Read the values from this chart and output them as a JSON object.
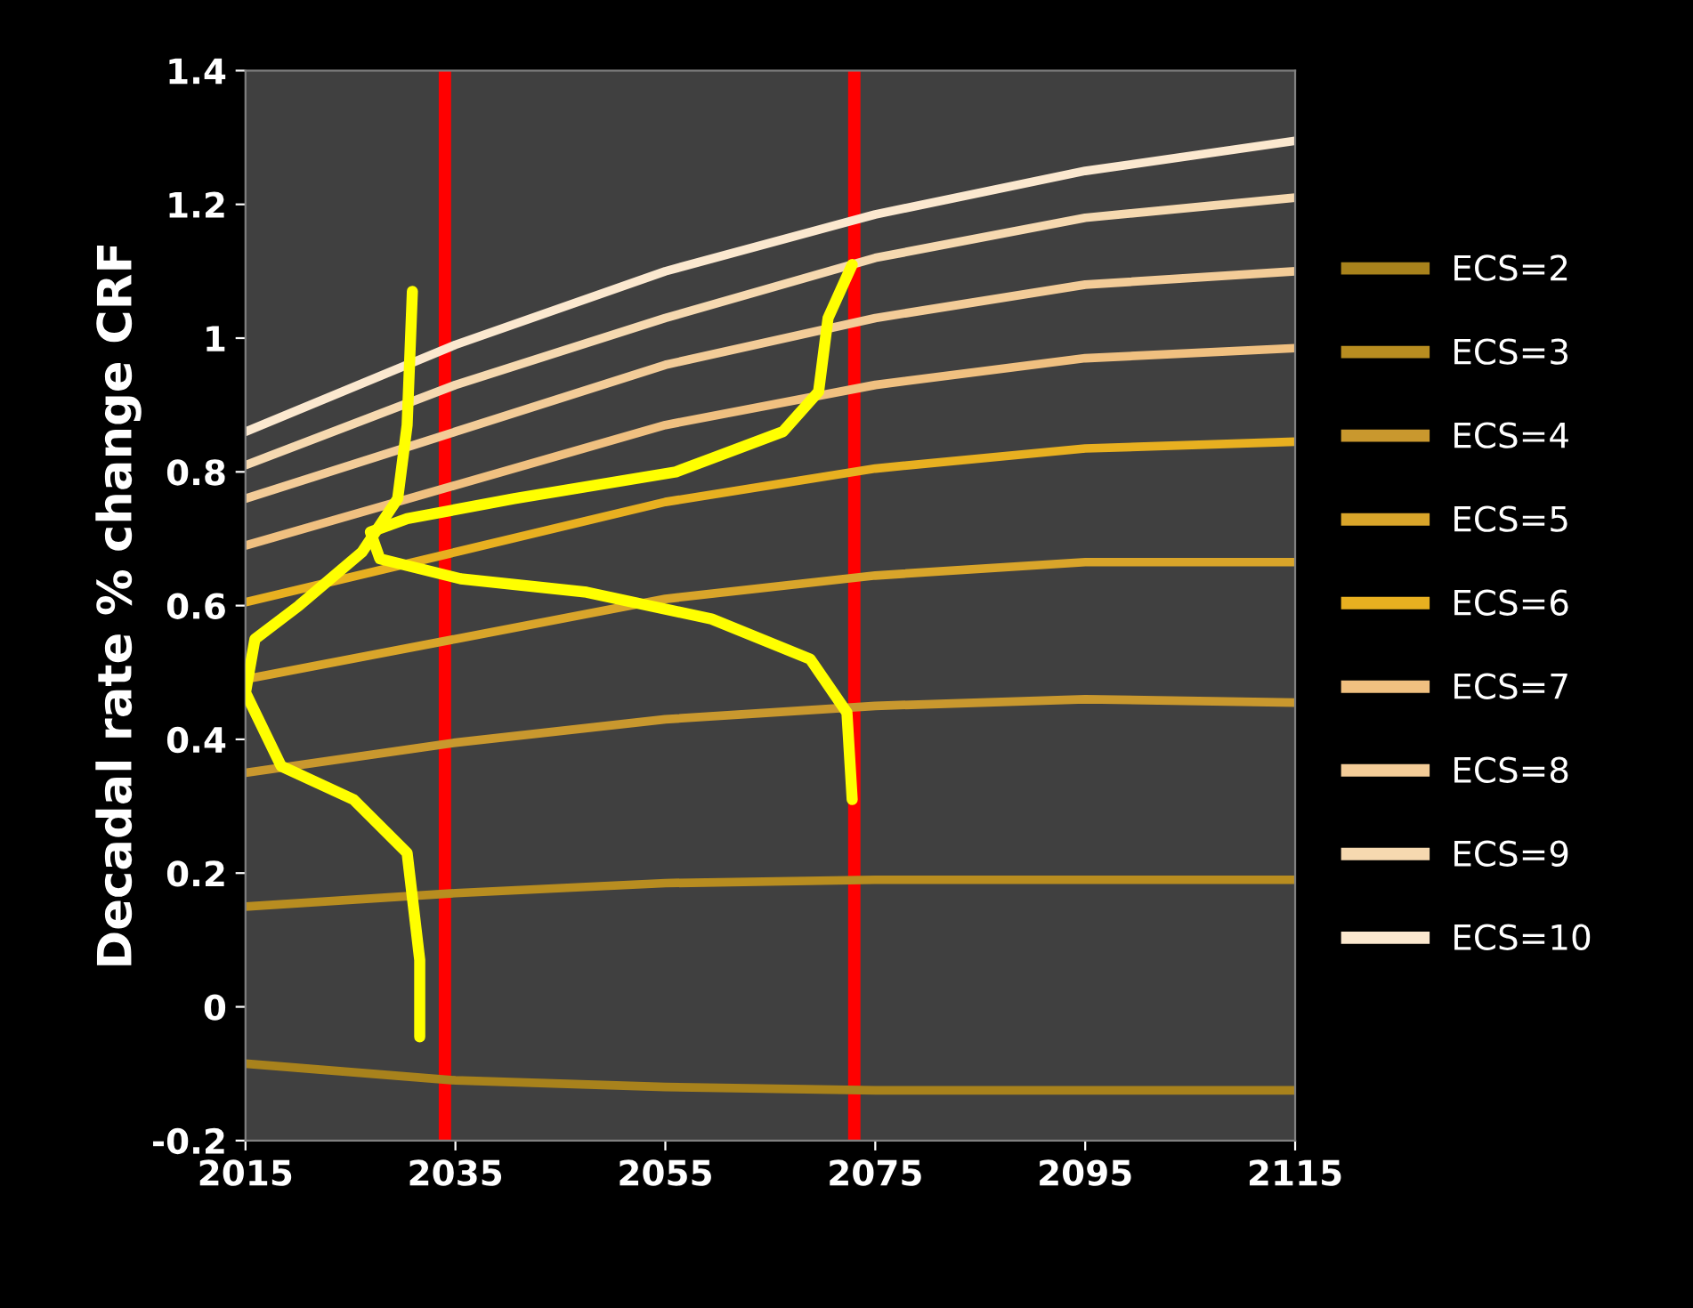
{
  "chart_data": {
    "type": "line",
    "ylabel": "Decadal rate % change CRF",
    "x": [
      2015,
      2035,
      2055,
      2075,
      2095,
      2115
    ],
    "xlim": [
      2015,
      2115
    ],
    "xticks": [
      2015,
      2035,
      2055,
      2075,
      2095,
      2115
    ],
    "ylim": [
      -0.2,
      1.4
    ],
    "yticks": [
      -0.2,
      0,
      0.2,
      0.4,
      0.6,
      0.8,
      1,
      1.2,
      1.4
    ],
    "grid": false,
    "legend": "right",
    "marker": "none",
    "line_style": "solid",
    "series": [
      {
        "name": "ECS=2",
        "color": "#a8821c",
        "values": [
          -0.085,
          -0.11,
          -0.12,
          -0.125,
          -0.125,
          -0.125
        ]
      },
      {
        "name": "ECS=3",
        "color": "#b88d20",
        "values": [
          0.15,
          0.17,
          0.185,
          0.19,
          0.19,
          0.19
        ]
      },
      {
        "name": "ECS=4",
        "color": "#c9982e",
        "values": [
          0.35,
          0.395,
          0.43,
          0.45,
          0.46,
          0.455
        ]
      },
      {
        "name": "ECS=5",
        "color": "#d9a52a",
        "values": [
          0.49,
          0.55,
          0.61,
          0.645,
          0.665,
          0.665
        ]
      },
      {
        "name": "ECS=6",
        "color": "#e8b020",
        "values": [
          0.605,
          0.68,
          0.755,
          0.805,
          0.835,
          0.845
        ]
      },
      {
        "name": "ECS=7",
        "color": "#f0c080",
        "values": [
          0.69,
          0.78,
          0.87,
          0.93,
          0.97,
          0.985
        ]
      },
      {
        "name": "ECS=8",
        "color": "#f3cc98",
        "values": [
          0.76,
          0.86,
          0.96,
          1.03,
          1.08,
          1.1
        ]
      },
      {
        "name": "ECS=9",
        "color": "#f6d9b0",
        "values": [
          0.81,
          0.93,
          1.03,
          1.12,
          1.18,
          1.21
        ]
      },
      {
        "name": "ECS=10",
        "color": "#fbe8cf",
        "values": [
          0.86,
          0.99,
          1.1,
          1.185,
          1.25,
          1.295
        ]
      },
      {
        "color": "#ffff00",
        "x": [
          2031.6,
          2031.6,
          2030.4,
          2025.3,
          2018.4,
          2015,
          2015.9,
          2020.1,
          2026.1,
          2027.8,
          2029.5,
          2030.4,
          2030.9
        ],
        "values": [
          -0.045,
          0.07,
          0.23,
          0.31,
          0.36,
          0.47,
          0.55,
          0.6,
          0.68,
          0.72,
          0.76,
          0.87,
          1.07
        ]
      },
      {
        "color": "#ffff00",
        "x": [
          2072.8,
          2072.3,
          2068.8,
          2059.4,
          2047.5,
          2035.5,
          2027.8,
          2026.9,
          2030.4,
          2040.6,
          2056,
          2066.2,
          2069.6,
          2070.5,
          2072.8
        ],
        "values": [
          0.31,
          0.44,
          0.52,
          0.58,
          0.62,
          0.64,
          0.67,
          0.71,
          0.73,
          0.76,
          0.8,
          0.86,
          0.92,
          1.03,
          1.11
        ]
      }
    ],
    "ref_lines": [
      {
        "axis": "x",
        "value": 2034,
        "color": "#ff0000"
      },
      {
        "axis": "x",
        "value": 2073,
        "color": "#ff0000"
      }
    ]
  }
}
